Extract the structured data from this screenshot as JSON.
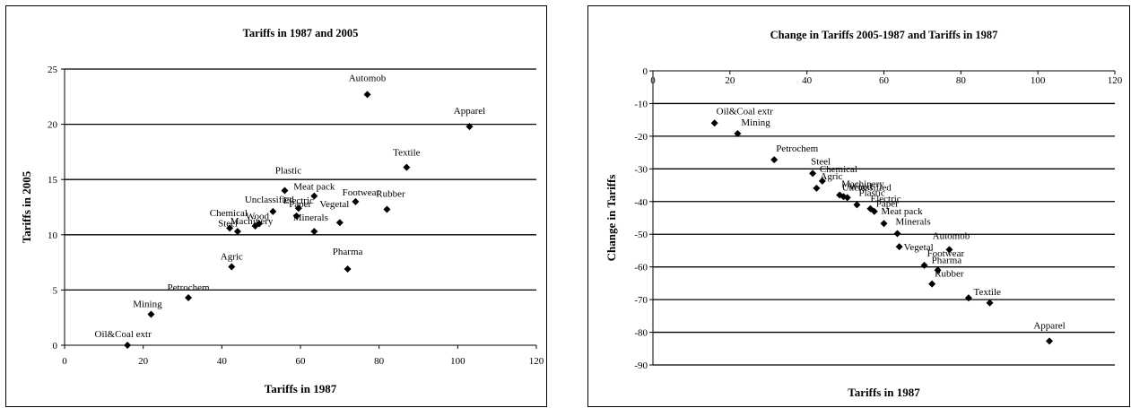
{
  "chart_data": [
    {
      "type": "scatter",
      "title": "Tariffs in 1987 and 2005",
      "xlabel": "Tariffs in 1987",
      "ylabel": "Tariffs in 2005",
      "xlim": [
        0,
        120
      ],
      "ylim": [
        0,
        25
      ],
      "xticks": [
        0,
        20,
        40,
        60,
        80,
        100,
        120
      ],
      "yticks": [
        0,
        5,
        10,
        15,
        20,
        25
      ],
      "grid": "horizontal",
      "points": [
        {
          "label": "Oil&Coal extr",
          "x": 16,
          "y": 0
        },
        {
          "label": "Mining",
          "x": 22,
          "y": 2.8
        },
        {
          "label": "Petrochem",
          "x": 31.5,
          "y": 4.3
        },
        {
          "label": "Agric",
          "x": 42.5,
          "y": 7.1
        },
        {
          "label": "Steel",
          "x": 42,
          "y": 10.6
        },
        {
          "label": "Chemical",
          "x": 44,
          "y": 10.3
        },
        {
          "label": "Machinery",
          "x": 48.5,
          "y": 10.8
        },
        {
          "label": "Wood",
          "x": 49.5,
          "y": 11.0
        },
        {
          "label": "Unclassified",
          "x": 53,
          "y": 12.1
        },
        {
          "label": "Plastic",
          "x": 56,
          "y": 14.0
        },
        {
          "label": "Electric",
          "x": 59.5,
          "y": 12.4
        },
        {
          "label": "Paper",
          "x": 59,
          "y": 11.7
        },
        {
          "label": "Meat pack",
          "x": 63.5,
          "y": 13.5
        },
        {
          "label": "Minerals",
          "x": 63.5,
          "y": 10.3
        },
        {
          "label": "Vegetal",
          "x": 70,
          "y": 11.1
        },
        {
          "label": "Footwear",
          "x": 74,
          "y": 13.0
        },
        {
          "label": "Pharma",
          "x": 72,
          "y": 6.9
        },
        {
          "label": "Automob",
          "x": 77,
          "y": 22.7
        },
        {
          "label": "Rubber",
          "x": 82,
          "y": 12.3
        },
        {
          "label": "Textile",
          "x": 87,
          "y": 16.1
        },
        {
          "label": "Apparel",
          "x": 103,
          "y": 19.8
        }
      ]
    },
    {
      "type": "scatter",
      "title": "Change in Tariffs 2005-1987 and Tariffs in 1987",
      "xlabel": "Tariffs in 1987",
      "ylabel": "Change in Tariffs",
      "xlim": [
        0,
        120
      ],
      "ylim": [
        -90,
        0
      ],
      "xticks": [
        0,
        20,
        40,
        60,
        80,
        100,
        120
      ],
      "yticks": [
        0,
        -10,
        -20,
        -30,
        -40,
        -50,
        -60,
        -70,
        -80,
        -90
      ],
      "grid": "horizontal",
      "points": [
        {
          "label": "Oil&Coal extr",
          "x": 16,
          "y": -16
        },
        {
          "label": "Mining",
          "x": 22,
          "y": -19.2
        },
        {
          "label": "Petrochem",
          "x": 31.5,
          "y": -27.2
        },
        {
          "label": "Steel",
          "x": 41.5,
          "y": -31.4
        },
        {
          "label": "Chemical",
          "x": 44,
          "y": -33.7
        },
        {
          "label": "Agric",
          "x": 42.5,
          "y": -35.9
        },
        {
          "label": "Machinery",
          "x": 48.5,
          "y": -38.0
        },
        {
          "label": "Wood",
          "x": 49.5,
          "y": -38.5
        },
        {
          "label": "Unclassified",
          "x": 50.5,
          "y": -38.8
        },
        {
          "label": "Plastic",
          "x": 53,
          "y": -41.0
        },
        {
          "label": "Electric",
          "x": 56.5,
          "y": -42.2
        },
        {
          "label": "Paper",
          "x": 57.5,
          "y": -43.0
        },
        {
          "label": "Meat pack",
          "x": 60,
          "y": -46.7
        },
        {
          "label": "Minerals",
          "x": 63.5,
          "y": -49.8
        },
        {
          "label": "Vegetal",
          "x": 64,
          "y": -53.8
        },
        {
          "label": "Automob",
          "x": 77,
          "y": -54.7
        },
        {
          "label": "Footwear",
          "x": 70.5,
          "y": -59.5
        },
        {
          "label": "Pharma",
          "x": 74,
          "y": -61.0
        },
        {
          "label": "Rubber",
          "x": 72.5,
          "y": -65.2
        },
        {
          "label": "Textile",
          "x": 82,
          "y": -69.5
        },
        {
          "label": "Textile_",
          "x": 87.5,
          "y": -71.0
        },
        {
          "label": "Apparel",
          "x": 103,
          "y": -82.7
        }
      ]
    }
  ]
}
